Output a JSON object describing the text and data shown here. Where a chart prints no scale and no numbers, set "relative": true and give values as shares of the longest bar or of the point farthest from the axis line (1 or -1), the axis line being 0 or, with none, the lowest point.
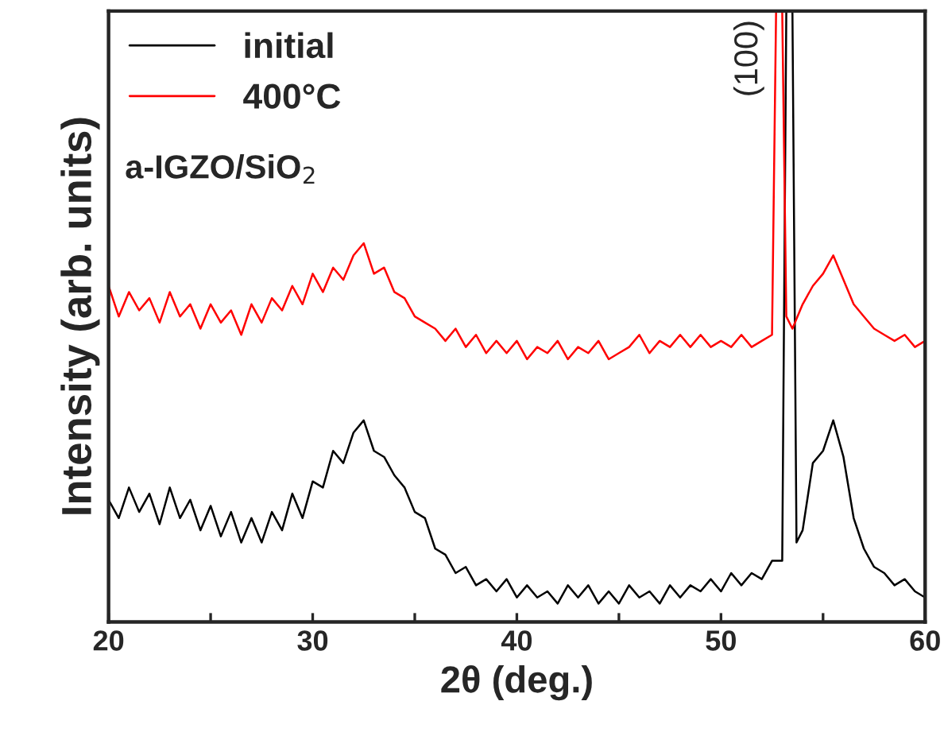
{
  "chart_data": {
    "type": "line",
    "relative": true,
    "xlabel": "2θ (deg.)",
    "ylabel": "Intensity (arb. units)",
    "xlim": [
      20,
      60
    ],
    "xticks": [
      20,
      {
        "value": 25,
        "label": null
      },
      30,
      {
        "value": 35,
        "label": null
      },
      40,
      {
        "value": 45,
        "label": null
      },
      50,
      {
        "value": 55,
        "label": null
      },
      60
    ],
    "tick_labels": "x",
    "legend": "top left",
    "grid": false,
    "marker": "none",
    "line_style": "solid",
    "annotations": [
      {
        "text": "(100)",
        "x": 53.2,
        "y": 1
      },
      "a-IGZO/SiO$_{2}$"
    ],
    "series": [
      {
        "name": "initial",
        "color": "#000000",
        "x": [
          20,
          20.5,
          21,
          21.5,
          22,
          22.5,
          23,
          23.5,
          24,
          24.5,
          25,
          25.5,
          26,
          26.5,
          27,
          27.5,
          28,
          28.5,
          29,
          29.5,
          30,
          30.5,
          31,
          31.5,
          32,
          32.5,
          33,
          33.5,
          34,
          34.5,
          35,
          35.5,
          36,
          36.5,
          37,
          37.5,
          38,
          38.5,
          39,
          39.5,
          40,
          40.5,
          41,
          41.5,
          42,
          42.5,
          43,
          43.5,
          44,
          44.5,
          45,
          45.5,
          46,
          46.5,
          47,
          47.5,
          48,
          48.5,
          49,
          49.5,
          50,
          50.5,
          51,
          51.5,
          52,
          52.5,
          53.0,
          53.2,
          53.5,
          53.7,
          54,
          54.5,
          55,
          55.5,
          56,
          56.5,
          57,
          57.5,
          58,
          58.5,
          59,
          59.5,
          60
        ],
        "values": [
          0.2,
          0.17,
          0.22,
          0.18,
          0.21,
          0.16,
          0.22,
          0.17,
          0.2,
          0.15,
          0.19,
          0.14,
          0.18,
          0.13,
          0.17,
          0.13,
          0.18,
          0.15,
          0.21,
          0.17,
          0.23,
          0.22,
          0.28,
          0.26,
          0.31,
          0.33,
          0.28,
          0.27,
          0.24,
          0.22,
          0.18,
          0.17,
          0.12,
          0.11,
          0.08,
          0.09,
          0.06,
          0.07,
          0.05,
          0.07,
          0.04,
          0.06,
          0.04,
          0.05,
          0.03,
          0.06,
          0.04,
          0.06,
          0.03,
          0.05,
          0.03,
          0.06,
          0.04,
          0.05,
          0.03,
          0.06,
          0.04,
          0.06,
          0.05,
          0.07,
          0.05,
          0.08,
          0.06,
          0.08,
          0.07,
          0.1,
          0.1,
          1,
          1,
          0.13,
          0.15,
          0.26,
          0.28,
          0.33,
          0.27,
          0.17,
          0.12,
          0.09,
          0.08,
          0.06,
          0.07,
          0.05,
          0.04
        ]
      },
      {
        "name": "400°C",
        "color": "#ff0000",
        "x": [
          20,
          20.5,
          21,
          21.5,
          22,
          22.5,
          23,
          23.5,
          24,
          24.5,
          25,
          25.5,
          26,
          26.5,
          27,
          27.5,
          28,
          28.5,
          29,
          29.5,
          30,
          30.5,
          31,
          31.5,
          32,
          32.5,
          33,
          33.5,
          34,
          34.5,
          35,
          35.5,
          36,
          36.5,
          37,
          37.5,
          38,
          38.5,
          39,
          39.5,
          40,
          40.5,
          41,
          41.5,
          42,
          42.5,
          43,
          43.5,
          44,
          44.5,
          45,
          45.5,
          46,
          46.5,
          47,
          47.5,
          48,
          48.5,
          49,
          49.5,
          50,
          50.5,
          51,
          51.5,
          52,
          52.5,
          52.7,
          53.0,
          53.2,
          53.5,
          54,
          54.5,
          55,
          55.5,
          56,
          56.5,
          57,
          57.5,
          58,
          58.5,
          59,
          59.5,
          60
        ],
        "values": [
          0.55,
          0.5,
          0.54,
          0.51,
          0.53,
          0.49,
          0.54,
          0.5,
          0.52,
          0.48,
          0.52,
          0.49,
          0.51,
          0.47,
          0.52,
          0.49,
          0.53,
          0.51,
          0.55,
          0.52,
          0.57,
          0.54,
          0.58,
          0.56,
          0.6,
          0.62,
          0.57,
          0.58,
          0.54,
          0.53,
          0.5,
          0.49,
          0.48,
          0.46,
          0.48,
          0.45,
          0.47,
          0.44,
          0.46,
          0.44,
          0.46,
          0.43,
          0.45,
          0.44,
          0.46,
          0.43,
          0.45,
          0.44,
          0.46,
          0.43,
          0.44,
          0.45,
          0.47,
          0.44,
          0.46,
          0.45,
          0.47,
          0.45,
          0.47,
          0.45,
          0.46,
          0.45,
          0.47,
          0.45,
          0.46,
          0.47,
          1,
          1,
          0.5,
          0.48,
          0.52,
          0.55,
          0.57,
          0.6,
          0.56,
          0.52,
          0.5,
          0.48,
          0.47,
          0.46,
          0.47,
          0.45,
          0.46
        ]
      }
    ]
  }
}
